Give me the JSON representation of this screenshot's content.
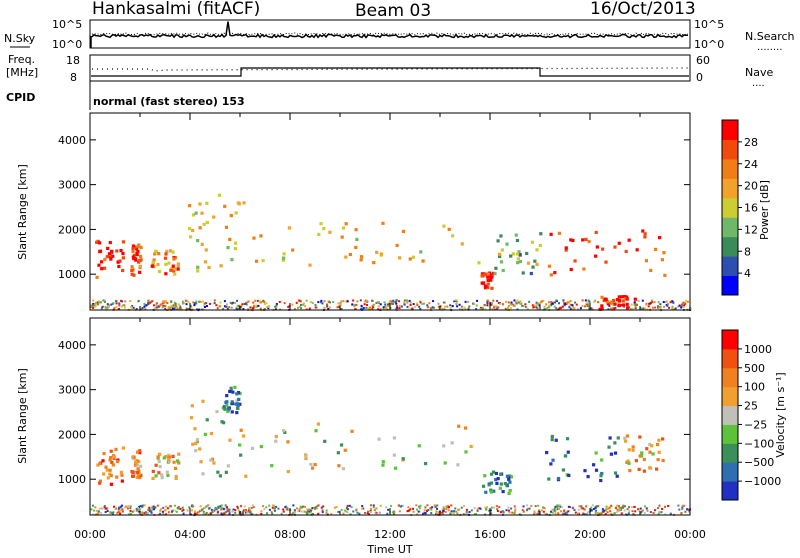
{
  "header": {
    "station": "Hankasalmi (fitACF)",
    "beam": "Beam 03",
    "date": "16/Oct/2013"
  },
  "noise_panel": {
    "left_label": "N.Sky",
    "right_label": "N.Search",
    "right_legend": "........",
    "left_ticks": [
      "10^5",
      "10^0"
    ],
    "right_ticks": [
      "10^5",
      "10^0"
    ]
  },
  "freq_panel": {
    "left_label_top": "Freq.",
    "left_label_bottom": "[MHz]",
    "left_ticks": [
      "18",
      "8"
    ],
    "right_label": "Nave",
    "right_legend": "....",
    "right_ticks": [
      "60",
      "0"
    ]
  },
  "cpid": {
    "label": "CPID",
    "text": "normal (fast stereo) 153"
  },
  "axes": {
    "xlabel": "Time UT",
    "x_ticks": [
      "00:00",
      "04:00",
      "08:00",
      "12:00",
      "16:00",
      "20:00",
      "00:00"
    ],
    "ylabel": "Slant Range [km]",
    "y_ticks": [
      "1000",
      "2000",
      "3000",
      "4000"
    ]
  },
  "colors": {
    "power_scale": [
      "#0000ff",
      "#2e4fb0",
      "#3c8a5a",
      "#6fb86a",
      "#cccc33",
      "#f2a22c",
      "#f07d16",
      "#f24a0c",
      "#ff0000"
    ],
    "velocity_scale": [
      "#2030c0",
      "#2d6fb0",
      "#3d8f5a",
      "#5cc23a",
      "#c0c0b8",
      "#f0a030",
      "#f08020",
      "#f05010",
      "#ff0000"
    ]
  },
  "chart_data": [
    {
      "type": "heatmap",
      "panel": "power",
      "xlabel": "Time UT",
      "ylabel": "Slant Range [km]",
      "xlim": [
        0,
        24
      ],
      "ylim": [
        200,
        4600
      ],
      "colorbar": {
        "label": "Power [dB]",
        "ticks": [
          "4",
          "8",
          "12",
          "16",
          "20",
          "24",
          "28"
        ],
        "range": [
          0,
          30
        ]
      },
      "echo_regions": [
        {
          "t0": 0.2,
          "t1": 1.3,
          "r0": 900,
          "r1": 1800,
          "level": 0.95
        },
        {
          "t0": 1.6,
          "t1": 2.0,
          "r0": 1000,
          "r1": 1700,
          "level": 0.85
        },
        {
          "t0": 2.4,
          "t1": 3.5,
          "r0": 1000,
          "r1": 1600,
          "level": 0.7
        },
        {
          "t0": 3.9,
          "t1": 6.2,
          "r0": 1100,
          "r1": 2800,
          "level": 0.55
        },
        {
          "t0": 6.2,
          "t1": 15.8,
          "r0": 1200,
          "r1": 2200,
          "level": 0.6
        },
        {
          "t0": 15.6,
          "t1": 16.1,
          "r0": 700,
          "r1": 1100,
          "level": 0.9
        },
        {
          "t0": 16.0,
          "t1": 18.0,
          "r0": 1000,
          "r1": 2000,
          "level": 0.4
        },
        {
          "t0": 18.2,
          "t1": 23.0,
          "r0": 1000,
          "r1": 2000,
          "level": 0.9
        },
        {
          "t0": 20.3,
          "t1": 21.8,
          "r0": 250,
          "r1": 550,
          "level": 0.9
        }
      ]
    },
    {
      "type": "heatmap",
      "panel": "velocity",
      "xlabel": "Time UT",
      "ylabel": "Slant Range [km]",
      "xlim": [
        0,
        24
      ],
      "ylim": [
        200,
        4600
      ],
      "colorbar": {
        "label": "Velocity [m s⁻¹]",
        "ticks": [
          "1000",
          "500",
          "100",
          "25",
          "−25",
          "−100",
          "−500",
          "−1000"
        ],
        "range": [
          -1000,
          1000
        ]
      },
      "echo_regions": [
        {
          "t0": 0.2,
          "t1": 1.3,
          "r0": 900,
          "r1": 1800,
          "level": 0.78
        },
        {
          "t0": 1.6,
          "t1": 2.0,
          "r0": 1000,
          "r1": 1700,
          "level": 0.7
        },
        {
          "t0": 2.4,
          "t1": 3.5,
          "r0": 1000,
          "r1": 1600,
          "level": 0.62
        },
        {
          "t0": 3.9,
          "t1": 6.2,
          "r0": 1100,
          "r1": 2800,
          "level": 0.45
        },
        {
          "t0": 5.3,
          "t1": 6.0,
          "r0": 2500,
          "r1": 3100,
          "level": 0.15
        },
        {
          "t0": 6.2,
          "t1": 15.8,
          "r0": 1200,
          "r1": 2300,
          "level": 0.5
        },
        {
          "t0": 15.6,
          "t1": 16.8,
          "r0": 700,
          "r1": 1200,
          "level": 0.2
        },
        {
          "t0": 18.2,
          "t1": 21.2,
          "r0": 1000,
          "r1": 2000,
          "level": 0.18
        },
        {
          "t0": 21.2,
          "t1": 23.0,
          "r0": 1200,
          "r1": 2000,
          "level": 0.65
        }
      ]
    }
  ]
}
